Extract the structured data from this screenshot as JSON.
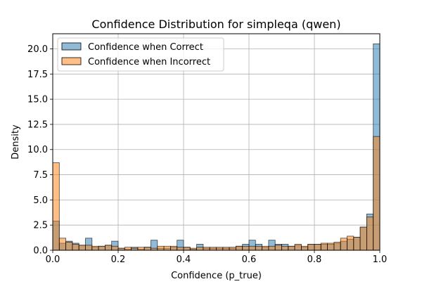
{
  "chart_data": {
    "type": "bar",
    "title": "Confidence Distribution for simpleqa (qwen)",
    "xlabel": "Confidence (p_true)",
    "ylabel": "Density",
    "xlim": [
      0.0,
      1.0
    ],
    "ylim": [
      0,
      21.5
    ],
    "xticks": [
      "0.0",
      "0.2",
      "0.4",
      "0.6",
      "0.8",
      "1.0"
    ],
    "yticks": [
      "0.0",
      "2.5",
      "5.0",
      "7.5",
      "10.0",
      "12.5",
      "15.0",
      "17.5",
      "20.0"
    ],
    "grid": true,
    "legend_position": "top-left",
    "bin_width": 0.02,
    "bin_edges_start": 0.0,
    "series": [
      {
        "name": "Confidence when Correct",
        "color": "#1f77b4",
        "values": [
          2.9,
          0.7,
          0.9,
          0.7,
          0.5,
          1.2,
          0.3,
          0.4,
          0.5,
          0.9,
          0.2,
          0.1,
          0.3,
          0.1,
          0.3,
          1.0,
          0.2,
          0.2,
          0.3,
          1.0,
          0.3,
          0.1,
          0.6,
          0.2,
          0.2,
          0.2,
          0.2,
          0.2,
          0.4,
          0.6,
          1.0,
          0.6,
          0.3,
          1.0,
          0.6,
          0.6,
          0.4,
          0.5,
          0.3,
          0.6,
          0.6,
          0.6,
          0.6,
          0.7,
          0.9,
          1.1,
          1.3,
          2.3,
          3.6,
          20.5
        ]
      },
      {
        "name": "Confidence when Incorrect",
        "color": "#ff7f0e",
        "values": [
          8.7,
          1.2,
          0.8,
          0.6,
          0.5,
          0.5,
          0.4,
          0.4,
          0.5,
          0.4,
          0.2,
          0.3,
          0.2,
          0.3,
          0.3,
          0.2,
          0.4,
          0.4,
          0.4,
          0.3,
          0.3,
          0.2,
          0.3,
          0.3,
          0.3,
          0.3,
          0.3,
          0.3,
          0.4,
          0.4,
          0.4,
          0.4,
          0.4,
          0.4,
          0.5,
          0.4,
          0.4,
          0.6,
          0.4,
          0.6,
          0.6,
          0.7,
          0.7,
          0.8,
          1.2,
          1.4,
          1.3,
          2.3,
          3.3,
          11.3
        ]
      }
    ]
  }
}
